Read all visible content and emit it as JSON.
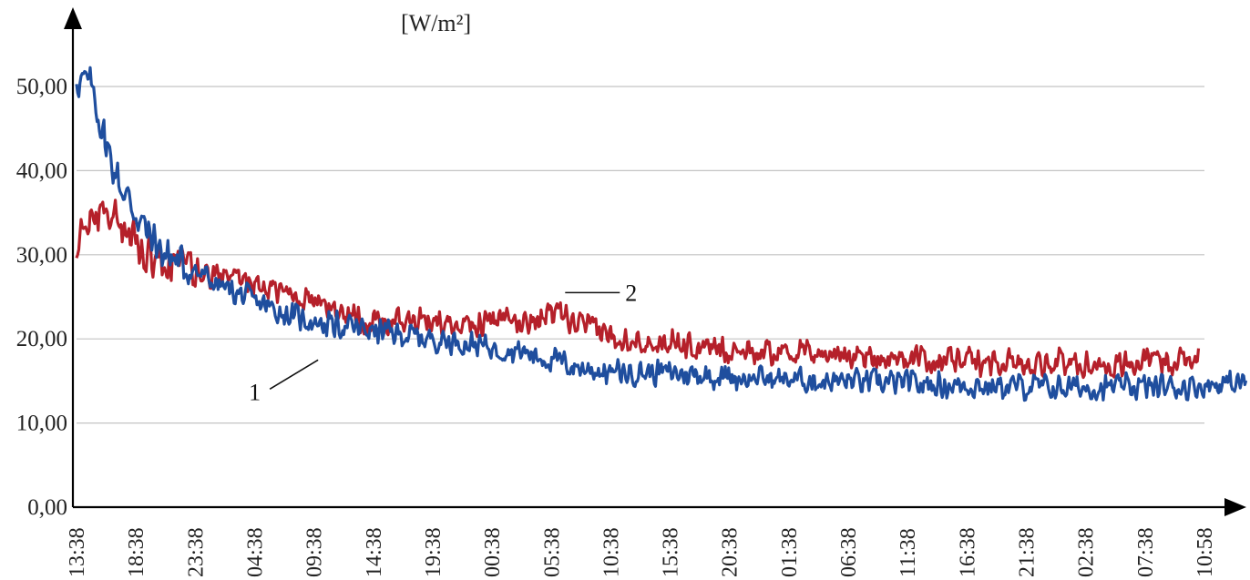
{
  "chart_data": {
    "type": "line",
    "title": "",
    "unit_label": "[W/m²]",
    "xlabel": "",
    "ylabel": "",
    "ylim": [
      0,
      50
    ],
    "yticks": [
      0,
      10,
      20,
      30,
      40,
      50
    ],
    "ytick_labels": [
      "0,00",
      "10,00",
      "20,00",
      "30,00",
      "40,00",
      "50,00"
    ],
    "grid": true,
    "x_tick_labels": [
      "13:38",
      "18:38",
      "23:38",
      "04:38",
      "09:38",
      "14:38",
      "19:38",
      "00:38",
      "05:38",
      "10:38",
      "15:38",
      "20:38",
      "01:38",
      "06:38",
      "11:38",
      "16:38",
      "21:38",
      "02:38",
      "07:38",
      "10:58"
    ],
    "series": [
      {
        "name": "1",
        "color": "#1f4e9e",
        "x": [
          0,
          0.25,
          0.5,
          0.75,
          1,
          1.25,
          1.5,
          2,
          2.5,
          3,
          3.5,
          4,
          4.5,
          5,
          5.5,
          6,
          6.5,
          7,
          7.5,
          8,
          8.5,
          9,
          9.5,
          10,
          10.5,
          11,
          11.5,
          12,
          12.5,
          13,
          13.5,
          14,
          14.5,
          15,
          15.5,
          16,
          16.5,
          17,
          17.5,
          18,
          18.5,
          19,
          19.5,
          19.7
        ],
        "y": [
          51,
          50,
          43,
          38,
          35,
          32,
          30,
          28,
          26,
          24.5,
          23,
          22,
          21.5,
          21,
          20.5,
          20,
          19.6,
          19,
          18.5,
          17.5,
          16.5,
          16,
          16,
          16,
          15.7,
          15.5,
          15.3,
          15.2,
          15,
          15,
          14.8,
          14.7,
          14.5,
          14.5,
          14.4,
          14.3,
          14.2,
          14.2,
          14.2,
          14.3,
          14.3,
          14.5,
          14.7,
          15
        ],
        "noise": 1.8,
        "label_x": 4.1,
        "label_y": 17.5
      },
      {
        "name": "2",
        "color": "#b5202a",
        "x": [
          0,
          0.25,
          0.5,
          0.75,
          1,
          1.25,
          1.5,
          2,
          2.5,
          3,
          3.5,
          4,
          4.5,
          5,
          5.5,
          6,
          6.5,
          7,
          7.5,
          8,
          8.5,
          9,
          9.5,
          10,
          10.5,
          11,
          11.5,
          12,
          12.5,
          13,
          13.5,
          14,
          14.5,
          15,
          15.5,
          16,
          16.5,
          17,
          17.5,
          18,
          18.5,
          18.9
        ],
        "y": [
          31,
          34,
          36,
          33,
          31,
          30,
          29.5,
          28,
          27,
          26.5,
          25.5,
          24.5,
          23,
          22,
          22,
          22,
          22,
          22,
          22,
          23,
          21.5,
          20.5,
          20,
          19.5,
          19,
          18.8,
          18.5,
          18.5,
          18.2,
          18,
          17.8,
          17.7,
          17.5,
          17.4,
          17.3,
          17.2,
          17.1,
          17,
          17,
          17.2,
          17.5,
          18
        ],
        "noise": 1.9,
        "label_x": 8.2,
        "label_y": 25.5
      }
    ]
  }
}
